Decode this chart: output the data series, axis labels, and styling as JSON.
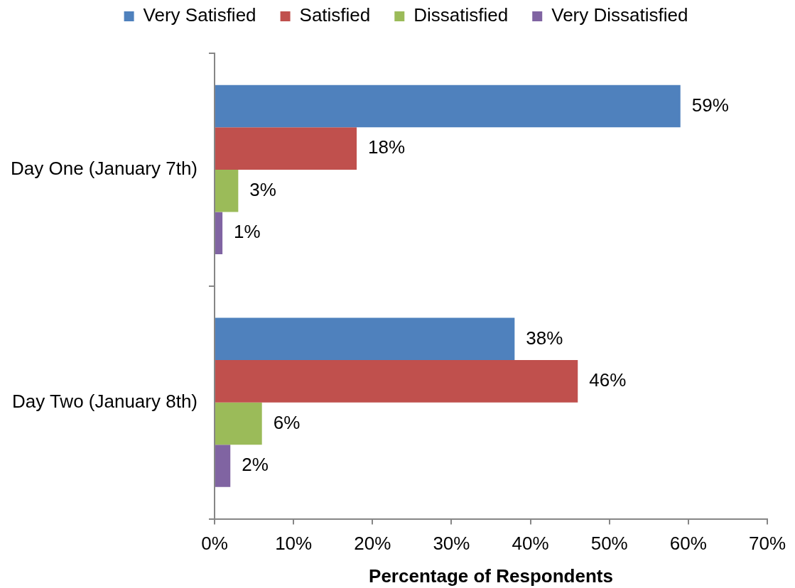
{
  "chart_data": {
    "type": "bar",
    "orientation": "horizontal",
    "categories": [
      "Day One (January 7th)",
      "Day Two (January 8th)"
    ],
    "series": [
      {
        "name": "Very Satisfied",
        "color": "#4f81bd",
        "values": [
          59,
          38
        ],
        "value_labels": [
          "59%",
          "38%"
        ]
      },
      {
        "name": "Satisfied",
        "color": "#c0504d",
        "values": [
          18,
          46
        ],
        "value_labels": [
          "18%",
          "46%"
        ]
      },
      {
        "name": "Dissatisfied",
        "color": "#9bbb59",
        "values": [
          3,
          6
        ],
        "value_labels": [
          "3%",
          "6%"
        ]
      },
      {
        "name": "Very Dissatisfied",
        "color": "#8064a2",
        "values": [
          1,
          2
        ],
        "value_labels": [
          "1%",
          "2%"
        ]
      }
    ],
    "xlabel": "Percentage of Respondents",
    "xlim": [
      0,
      70
    ],
    "xticks": [
      {
        "value": 0,
        "label": "0%"
      },
      {
        "value": 10,
        "label": "10%"
      },
      {
        "value": 20,
        "label": "20%"
      },
      {
        "value": 30,
        "label": "30%"
      },
      {
        "value": 40,
        "label": "40%"
      },
      {
        "value": 50,
        "label": "50%"
      },
      {
        "value": 60,
        "label": "60%"
      },
      {
        "value": 70,
        "label": "70%"
      }
    ],
    "legend": "top",
    "grid": false
  }
}
